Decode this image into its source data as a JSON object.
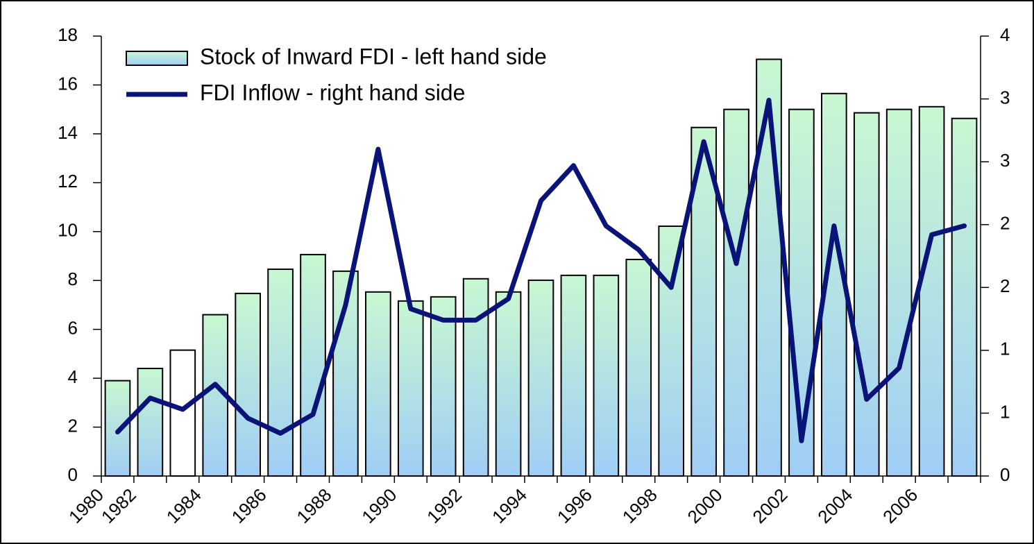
{
  "chart_data": {
    "type": "bar_line",
    "categories": [
      null,
      null,
      null,
      null,
      null,
      null,
      null,
      null,
      null,
      null,
      null,
      null,
      null,
      null,
      null,
      null,
      null,
      null,
      null,
      null,
      null,
      null,
      null,
      null,
      null,
      null,
      null
    ],
    "xlim": [
      0,
      27
    ],
    "xticks": [
      {
        "value": 0,
        "label": "1980"
      },
      {
        "value": 1,
        "label": "1982"
      },
      {
        "value": 3,
        "label": "1984"
      },
      {
        "value": 5,
        "label": "1986"
      },
      {
        "value": 7,
        "label": "1988"
      },
      {
        "value": 9,
        "label": "1990"
      },
      {
        "value": 11,
        "label": "1992"
      },
      {
        "value": 13,
        "label": "1994"
      },
      {
        "value": 15,
        "label": "1996"
      },
      {
        "value": 17,
        "label": "1998"
      },
      {
        "value": 19,
        "label": "2000"
      },
      {
        "value": 21,
        "label": "2002"
      },
      {
        "value": 23,
        "label": "2004"
      },
      {
        "value": 25,
        "label": "2006"
      }
    ],
    "ylim": [
      0,
      18
    ],
    "yticks": [
      0,
      2,
      4,
      6,
      8,
      10,
      12,
      14,
      16,
      18
    ],
    "y2lim": [
      0,
      3.5
    ],
    "y2ticks": [
      0,
      {
        "value": 0.5,
        "label": "1"
      },
      1,
      {
        "value": 1.5,
        "label": "2"
      },
      2,
      {
        "value": 2.5,
        "label": "3"
      },
      3,
      {
        "value": 3.5,
        "label": "4"
      }
    ],
    "legend": "top-left",
    "series": [
      {
        "name": "Stock of Inward FDI - left hand side",
        "type": "bar",
        "color": "#a0cdf5",
        "color_top": "#c8f7d2",
        "bar_colors": [
          null,
          null,
          "#ffffff",
          null,
          null,
          null,
          null,
          null,
          null,
          null,
          null,
          null,
          null,
          null,
          null,
          null,
          null,
          null,
          null,
          null,
          null,
          null,
          null,
          null,
          null,
          null,
          null
        ],
        "values": [
          3.9,
          4.4,
          5.15,
          6.6,
          7.47,
          8.46,
          9.06,
          8.38,
          7.53,
          7.16,
          7.33,
          8.07,
          7.53,
          8.01,
          8.21,
          8.21,
          8.86,
          10.22,
          14.26,
          15.0,
          17.05,
          15.0,
          15.65,
          14.86,
          15.0,
          15.11,
          14.63
        ]
      },
      {
        "name": "FDI Inflow - right hand side",
        "type": "line",
        "axis": "y2",
        "color": "#0a1478",
        "values": [
          0.35,
          0.62,
          0.53,
          0.73,
          0.46,
          0.34,
          0.49,
          1.36,
          2.6,
          1.33,
          1.24,
          1.24,
          1.41,
          2.19,
          2.47,
          1.99,
          1.8,
          1.5,
          2.66,
          1.69,
          2.99,
          0.28,
          1.99,
          0.61,
          0.86,
          1.92,
          1.99
        ]
      }
    ]
  }
}
